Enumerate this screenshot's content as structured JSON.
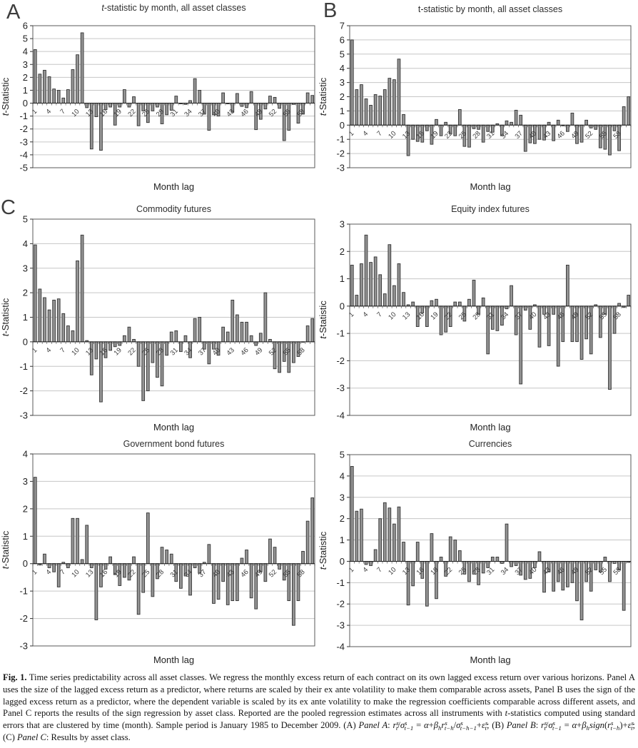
{
  "figure": {
    "panel_labels": [
      "A",
      "B",
      "C"
    ],
    "caption_html": "<b>Fig. 1.</b> Time series predictability across all asset classes. We regress the monthly excess return of each contract on its own lagged excess return over various horizons. Panel A uses the size of the lagged excess return as a predictor, where returns are scaled by their ex ante volatility to make them comparable across assets, Panel B uses the sign of the lagged excess return as a predictor, where the dependent variable is scaled by its ex ante volatility to make the regression coefficients comparable across different assets, and Panel C reports the results of the sign regression by asset class. Reported are the pooled regression estimates across all instruments with <i>t</i>-statistics computed using standard errors that are clustered by time (month). Sample period is January 1985 to December 2009. (A) <i>Panel A</i>: <i>r</i><sup>s</sup><sub>t</sub>/<i>σ</i><sup>s</sup><sub>t−1</sub> = <i>α</i>+<i>β</i><sub>h</sub><i>r</i><sup>s</sup><sub>t−h</sub>/<i>σ</i><sup>s</sup><sub>t−h−1</sub>+<i>ε</i><sup>s</sup><sub>t</sub>; (B) <i>Panel B</i>: <i>r</i><sup>s</sup><sub>t</sub>/<i>σ</i><sup>s</sup><sub>t−1</sub> = <i>α</i>+<i>β</i><sub>h</sub><i>sign</i>(<i>r</i><sup>s</sup><sub>t−h</sub>)+<i>ε</i><sup>s</sup><sub>t</sub>; (C) <i>Panel C</i>: Results by asset class."
  },
  "axis": {
    "xlabel": "Month lag",
    "ylabel": "t-Statistic",
    "month_lag_ticks": [
      "1",
      "4",
      "7",
      "10",
      "13",
      "16",
      "19",
      "22",
      "25",
      "28",
      "31",
      "34",
      "37",
      "40",
      "43",
      "46",
      "49",
      "52",
      "55",
      "58"
    ]
  },
  "colors": {
    "bar_fill": "#949494",
    "bar_stroke": "#333333",
    "gridline": "#c6c6c6",
    "plot_border": "#5a5a5a",
    "axis_line": "#1a1a1a",
    "text": "#222222"
  },
  "chart_data": [
    {
      "id": "panel-a-all-assets",
      "panel": "A",
      "type": "bar",
      "title": "t-statistic by month, all asset classes",
      "title_lead_italic": true,
      "xlabel": "Month lag",
      "ylabel": "t-Statistic",
      "ylim": [
        -5,
        6
      ],
      "ytick_step": 1,
      "lag_range": [
        1,
        60
      ],
      "values": [
        4.15,
        2.25,
        2.55,
        2.05,
        1.1,
        1.0,
        0.4,
        1.05,
        2.6,
        3.75,
        5.45,
        -0.35,
        -3.55,
        -1.05,
        -3.65,
        -0.5,
        -0.3,
        -1.7,
        -0.3,
        1.05,
        -0.3,
        0.5,
        -1.75,
        -0.6,
        -1.5,
        -0.6,
        -0.3,
        -1.6,
        -0.9,
        -0.55,
        0.55,
        -0.05,
        -0.1,
        0.2,
        1.9,
        1.0,
        -0.85,
        -2.1,
        -0.9,
        -1.0,
        0.8,
        -0.05,
        -0.7,
        0.75,
        -0.25,
        -0.35,
        0.9,
        -2.05,
        -1.25,
        -0.45,
        0.55,
        0.45,
        -0.4,
        -2.9,
        -2.1,
        -0.1,
        -1.55,
        -0.85,
        0.8,
        0.6
      ]
    },
    {
      "id": "panel-b-all-assets",
      "panel": "B",
      "type": "bar",
      "title": "t-statistic by month, all asset classes",
      "title_lead_italic": false,
      "xlabel": "Month lag",
      "ylabel": "t-Statistic",
      "ylim": [
        -3,
        7
      ],
      "ytick_step": 1,
      "lag_range": [
        1,
        60
      ],
      "values": [
        6.0,
        2.5,
        2.85,
        1.85,
        1.4,
        2.15,
        2.05,
        2.5,
        3.3,
        3.2,
        4.65,
        0.75,
        -2.15,
        -1.0,
        -1.15,
        -1.2,
        -0.4,
        -1.35,
        0.4,
        -0.75,
        0.2,
        -0.6,
        -0.75,
        1.1,
        -1.5,
        -1.55,
        -0.25,
        -0.3,
        -1.2,
        -0.45,
        -0.5,
        0.1,
        -0.75,
        0.3,
        0.2,
        1.05,
        0.7,
        -1.85,
        -1.25,
        -1.3,
        -1.0,
        -1.05,
        0.2,
        -1.1,
        0.35,
        -0.05,
        -0.45,
        0.85,
        -1.3,
        -1.2,
        0.35,
        -0.2,
        -0.3,
        -1.6,
        -1.7,
        -2.1,
        -0.4,
        -1.8,
        1.3,
        2.0
      ]
    },
    {
      "id": "commodity-futures",
      "panel": "C",
      "type": "bar",
      "title": "Commodity futures",
      "title_lead_italic": false,
      "xlabel": "Month lag",
      "ylabel": "t-Statistic",
      "ylim": [
        -3,
        5
      ],
      "ytick_step": 1,
      "lag_range": [
        1,
        60
      ],
      "values": [
        3.95,
        2.15,
        1.8,
        1.3,
        1.7,
        1.75,
        1.15,
        0.65,
        0.45,
        3.3,
        4.35,
        0.05,
        -1.35,
        -0.7,
        -2.45,
        -0.65,
        -0.35,
        -0.2,
        -0.15,
        0.25,
        0.6,
        0.1,
        -1.0,
        -2.4,
        -2.0,
        -0.85,
        -1.45,
        -1.8,
        -0.55,
        0.4,
        0.45,
        -0.4,
        0.25,
        -0.65,
        0.95,
        1.0,
        -0.3,
        -0.9,
        -0.3,
        -0.55,
        0.6,
        0.4,
        1.7,
        1.1,
        0.8,
        0.8,
        0.25,
        -0.15,
        0.35,
        2.0,
        0.1,
        -1.1,
        -1.25,
        -0.8,
        -1.25,
        -0.85,
        -0.6,
        0.0,
        0.65,
        0.95
      ]
    },
    {
      "id": "equity-index-futures",
      "panel": "C",
      "type": "bar",
      "title": "Equity index futures",
      "title_lead_italic": false,
      "xlabel": "Month lag",
      "ylabel": "t-Statistic",
      "ylim": [
        -4,
        3
      ],
      "ytick_step": 1,
      "lag_range": [
        1,
        60
      ],
      "values": [
        1.5,
        0.4,
        1.55,
        2.6,
        1.6,
        1.8,
        1.15,
        0.45,
        2.25,
        0.75,
        1.55,
        0.5,
        0.05,
        0.15,
        -0.75,
        -0.25,
        -0.75,
        0.2,
        0.25,
        -1.05,
        -0.95,
        -0.75,
        0.15,
        0.15,
        -0.55,
        0.25,
        0.95,
        -0.3,
        0.3,
        -1.75,
        -0.85,
        -0.9,
        -0.7,
        -0.1,
        0.75,
        -1.05,
        -2.85,
        -0.15,
        -0.85,
        0.05,
        -1.5,
        -0.3,
        -1.45,
        -0.3,
        -2.2,
        -1.3,
        1.5,
        -1.3,
        -1.3,
        -1.95,
        -1.2,
        -1.75,
        0.05,
        -1.15,
        -0.3,
        -3.05,
        -1.0,
        0.1,
        -0.05,
        0.4
      ]
    },
    {
      "id": "government-bond-futures",
      "panel": "C",
      "type": "bar",
      "title": "Government bond futures",
      "title_lead_italic": false,
      "xlabel": "Month lag",
      "ylabel": "t-Statistic",
      "ylim": [
        -3,
        4
      ],
      "ytick_step": 1,
      "lag_range": [
        1,
        60
      ],
      "values": [
        3.15,
        -0.05,
        0.35,
        -0.15,
        -0.3,
        -0.85,
        0.05,
        -0.15,
        1.65,
        1.65,
        0.15,
        1.4,
        -0.15,
        -2.05,
        -0.85,
        -0.2,
        0.25,
        -0.4,
        -0.8,
        -0.5,
        -0.6,
        0.25,
        -1.85,
        -1.05,
        1.85,
        -1.2,
        -0.55,
        0.6,
        0.5,
        0.35,
        -0.65,
        -0.9,
        -0.45,
        -1.15,
        -0.15,
        -0.35,
        0.05,
        0.7,
        -1.45,
        -1.3,
        -0.65,
        -1.5,
        -1.35,
        -1.35,
        0.2,
        0.5,
        -1.25,
        -1.65,
        -0.3,
        -0.65,
        0.9,
        0.6,
        -0.2,
        -0.6,
        -1.35,
        -2.25,
        -1.35,
        0.45,
        1.55,
        2.4
      ]
    },
    {
      "id": "currencies",
      "panel": "C",
      "type": "bar",
      "title": "Currencies",
      "title_lead_italic": false,
      "xlabel": "Month lag",
      "ylabel": "t-Statistic",
      "ylim": [
        -4,
        5
      ],
      "ytick_step": 1,
      "lag_range": [
        1,
        60
      ],
      "values": [
        4.45,
        2.35,
        2.45,
        -0.15,
        -0.2,
        0.55,
        2.0,
        2.75,
        2.5,
        1.75,
        2.55,
        0.9,
        -2.05,
        -1.15,
        0.9,
        -0.8,
        -2.1,
        1.3,
        -1.75,
        0.2,
        -0.7,
        1.15,
        1.0,
        0.5,
        -0.6,
        -0.95,
        -0.6,
        -1.1,
        -0.55,
        -0.3,
        0.2,
        0.2,
        -0.1,
        1.75,
        -0.25,
        -0.2,
        -0.65,
        -0.85,
        -0.8,
        -0.3,
        0.45,
        -1.45,
        -0.5,
        -1.4,
        -0.95,
        -1.35,
        -1.2,
        -1.0,
        -1.85,
        -2.75,
        -0.95,
        -1.4,
        -0.4,
        -0.5,
        0.2,
        -0.95,
        -0.1,
        -0.4,
        -2.3,
        -0.05
      ]
    }
  ]
}
